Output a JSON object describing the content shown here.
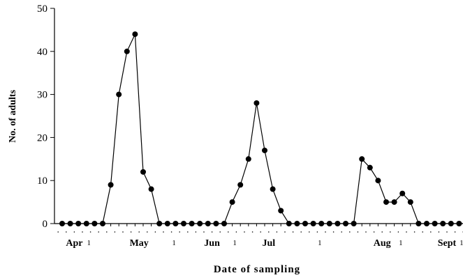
{
  "chart_data": {
    "type": "line",
    "title": "",
    "xlabel": "Date of sampling",
    "ylabel": "No. of adults",
    "ylim": [
      0,
      50
    ],
    "yticks": [
      0,
      10,
      20,
      30,
      40,
      50
    ],
    "grid": false,
    "legend": "none",
    "x_count": 52,
    "x_tick_labels": [
      {
        "text": "Apr",
        "index": 1.5
      },
      {
        "text": "1",
        "index": 3.3
      },
      {
        "text": "May",
        "index": 9.5
      },
      {
        "text": "1",
        "index": 13.8
      },
      {
        "text": "Jun",
        "index": 18.5
      },
      {
        "text": "1",
        "index": 21.3
      },
      {
        "text": "Jul",
        "index": 25.5
      },
      {
        "text": "1",
        "index": 31.8
      },
      {
        "text": "Aug",
        "index": 39.5
      },
      {
        "text": "1",
        "index": 41.8
      },
      {
        "text": "Sept",
        "index": 47.5
      },
      {
        "text": "1",
        "index": 49.3
      }
    ],
    "series": [
      {
        "color": "#000000",
        "values": [
          0,
          0,
          0,
          0,
          0,
          0,
          9,
          30,
          40,
          44,
          12,
          8,
          0,
          0,
          0,
          0,
          0,
          0,
          0,
          0,
          0,
          5,
          9,
          15,
          28,
          17,
          8,
          3,
          0,
          0,
          0,
          0,
          0,
          0,
          0,
          0,
          0,
          15,
          13,
          10,
          5,
          5,
          7,
          5,
          0,
          0,
          0,
          0,
          0,
          0,
          0,
          0
        ]
      }
    ]
  }
}
